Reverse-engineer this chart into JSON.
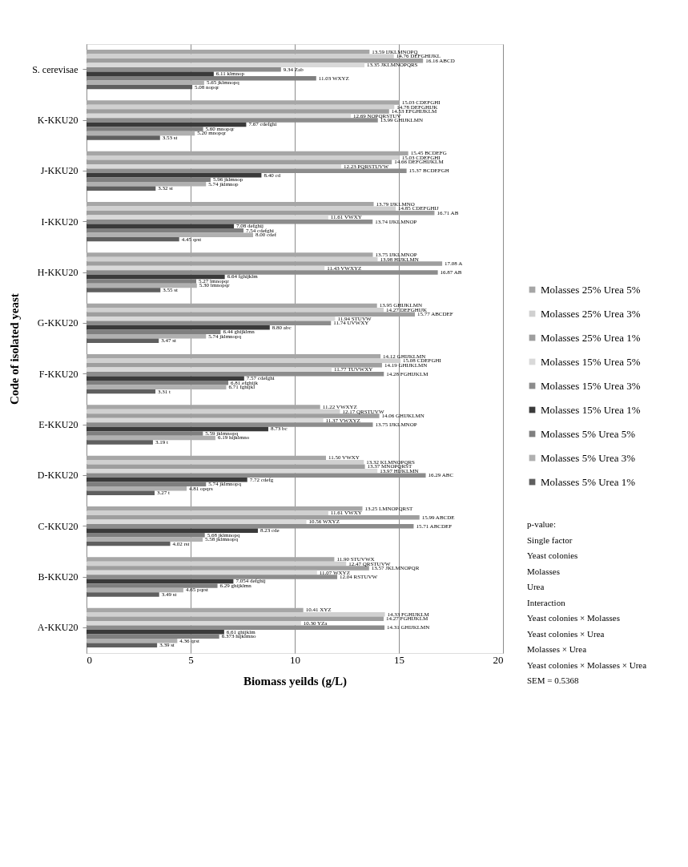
{
  "chart_data": {
    "type": "bar",
    "orientation": "horizontal",
    "xlabel": "Biomass yeilds (g/L)",
    "ylabel": "Code of isolated yeast",
    "categories": [
      "S. cerevisae",
      "K-KKU20",
      "J-KKU20",
      "I-KKU20",
      "H-KKU20",
      "G-KKU20",
      "F-KKU20",
      "E-KKU20",
      "D-KKU20",
      "C-KKU20",
      "B-KKU20",
      "A-KKU20"
    ],
    "xlim": [
      0,
      20
    ],
    "xticks": [
      0,
      5,
      10,
      15,
      20
    ],
    "grid": "x",
    "legend": "right",
    "series": [
      {
        "name": "Molasses 25% Urea 5%",
        "color": "#a6a6a6",
        "values": [
          13.59,
          15.03,
          15.45,
          13.79,
          13.75,
          13.95,
          14.12,
          11.22,
          11.5,
          13.25,
          11.9,
          10.41
        ],
        "value_labels": [
          "13.59 IJKLMNOPQ",
          "15.03 CDEFGHI",
          "15.45 BCDEFG",
          "13.79 IJKLMNO",
          "13.75 IJKLMNOP",
          "13.95 GHIJKLMN",
          "14.12 GHIJKLMN",
          "11.22 VWXYZ",
          "11.50 VWXY",
          "13.25 LMNOPQRST",
          "11.90 STUVWX",
          "10.41 XYZ"
        ]
      },
      {
        "name": "Molasses 25% Urea 3%",
        "color": "#d0d0d0",
        "values": [
          14.76,
          14.78,
          15.03,
          14.85,
          13.98,
          14.27,
          15.08,
          12.17,
          13.32,
          11.61,
          12.47,
          14.33
        ],
        "value_labels": [
          "14.76 DEFGHIJKL",
          "14.78 DEFGHIJK",
          "15.03 CDEFGHI",
          "14.85 CDEFGHIJ",
          "13.98 HIJKLMN",
          "14.27 DEFGHIJK",
          "15.08 CDEFGHI",
          "12.17 QRSTUVW",
          "13.32 KLMNOPQRS",
          "11.61 VWXY",
          "12.47 QRSTUVW",
          "14.33 FGHIJKLM"
        ]
      },
      {
        "name": "Molasses 25% Urea 1%",
        "color": "#9e9e9e",
        "values": [
          16.16,
          14.53,
          14.66,
          16.71,
          17.08,
          15.77,
          14.19,
          14.06,
          13.37,
          15.99,
          13.57,
          14.27
        ],
        "value_labels": [
          "16.16 ABCD",
          "14.53 EFGHIJKLM",
          "14.66 DEFGHIJKLM",
          "16.71 AB",
          "17.08 A",
          "15.77 ABCDEF",
          "14.19 GHIJKLMN",
          "14.06 GHIJKLMN",
          "13.37 MNOPQRST",
          "15.99 ABCDE",
          "13.57 JKLMNOPQR",
          "14.27 FGHIJKLM"
        ]
      },
      {
        "name": "Molasses 15% Urea 5%",
        "color": "#d9d9d9",
        "values": [
          13.35,
          12.69,
          12.23,
          11.61,
          11.43,
          11.94,
          11.77,
          11.37,
          13.97,
          10.56,
          11.07,
          10.3
        ],
        "value_labels": [
          "13.35 JKLMNOPQRS",
          "12.69 NOPQRSTUV",
          "12.23 PQRSTUVW",
          "11.61 VWXY",
          "11.43 VWXYZ",
          "11.94 STUVW",
          "11.77 TUVWXY",
          "11.37 VWXYZ",
          "13.97 HIJKLMN",
          "10.56 WXYZ",
          "11.07 WXYZ",
          "10.30 YZa"
        ]
      },
      {
        "name": "Molasses 15% Urea 3%",
        "color": "#8c8c8c",
        "values": [
          9.34,
          13.99,
          15.37,
          13.74,
          16.87,
          11.74,
          14.28,
          13.75,
          16.29,
          15.71,
          12.04,
          14.31
        ],
        "value_labels": [
          "9.34 Zab",
          "13.99 GHIJKLMN",
          "15.37 BCDEFGH",
          "13.74 IJKLMNOP",
          "16.87 AB",
          "11.74 UVWXY",
          "14.28 FGHIJKLM",
          "13.75 IJKLMNOP",
          "16.29 ABC",
          "15.71 ABCDEF",
          "12.04 RSTUVW",
          "14.31 GHIJKLMN"
        ]
      },
      {
        "name": "Molasses 15% Urea 1%",
        "color": "#3a3a3a",
        "values": [
          6.11,
          7.67,
          8.4,
          7.08,
          6.64,
          8.8,
          7.57,
          8.73,
          7.72,
          8.23,
          7.054,
          6.61
        ],
        "value_labels": [
          "6.11 klmnop",
          "7.67 cdefghi",
          "8.40 cd",
          "7.08 defghij",
          "6.64 fghijklm",
          "8.80 abc",
          "7.57 cdefghi",
          "8.73 bc",
          "7.72 cdefg",
          "8.23 cde",
          "7.054 defghij",
          "6.61 ghijklm"
        ]
      },
      {
        "name": "Molasses 5% Urea 5%",
        "color": "#7f7f7f",
        "values": [
          11.03,
          5.6,
          5.96,
          7.54,
          5.27,
          6.44,
          6.81,
          5.59,
          5.74,
          5.68,
          6.29,
          6.373
        ],
        "value_labels": [
          "11.03 WXYZ",
          "5.60 mnopqr",
          "5.96 jklmnop",
          "7.54 cdefghi",
          "5.27 lmnopqr",
          "6.44 ghijklmn",
          "6.81 efghijk",
          "5.59 jklmnopq",
          "5.74 jklmnopq",
          "5.68 jklmnopq",
          "6.29 ghijklmn",
          "6.373 hijklmno"
        ]
      },
      {
        "name": "Molasses 5% Urea 3%",
        "color": "#b0b0b0",
        "values": [
          5.65,
          5.2,
          5.74,
          8.0,
          5.3,
          5.74,
          6.71,
          6.19,
          4.81,
          5.58,
          4.65,
          4.36
        ],
        "value_labels": [
          "5.65 jklmnopq",
          "5.20 mnopqr",
          "5.74 jklmnop",
          "8.00 cdef",
          "5.30 lmnopqr",
          "5.74 jklmnopq",
          "6.71 fghijkl",
          "6.19 hijklmno",
          "4.81 opqrs",
          "5.58 jklmnopq",
          "4.65 pqrst",
          "4.36 qrst"
        ]
      },
      {
        "name": "Molasses 5% Urea 1%",
        "color": "#5f5f5f",
        "values": [
          5.08,
          3.53,
          3.32,
          4.45,
          3.55,
          3.47,
          3.31,
          3.19,
          3.27,
          4.02,
          3.49,
          3.39
        ],
        "value_labels": [
          "5.08 nopqr",
          "3.53 st",
          "3.32 st",
          "4.45 qrst",
          "3.55 st",
          "3.47 st",
          "3.31 t",
          "3.19 t",
          "3.27 t",
          "4.02 rst",
          "3.49 st",
          "3.39 st"
        ]
      }
    ],
    "annotations": [
      "p-value:",
      "Single factor",
      "Yeast colonies",
      "Molasses",
      "Urea",
      "Interaction",
      "Yeast colonies  × Molasses",
      "Yeast colonies  × Urea",
      "Molasses × Urea",
      "Yeast colonies  × Molasses  × Urea",
      "SEM = 0.5368"
    ]
  }
}
